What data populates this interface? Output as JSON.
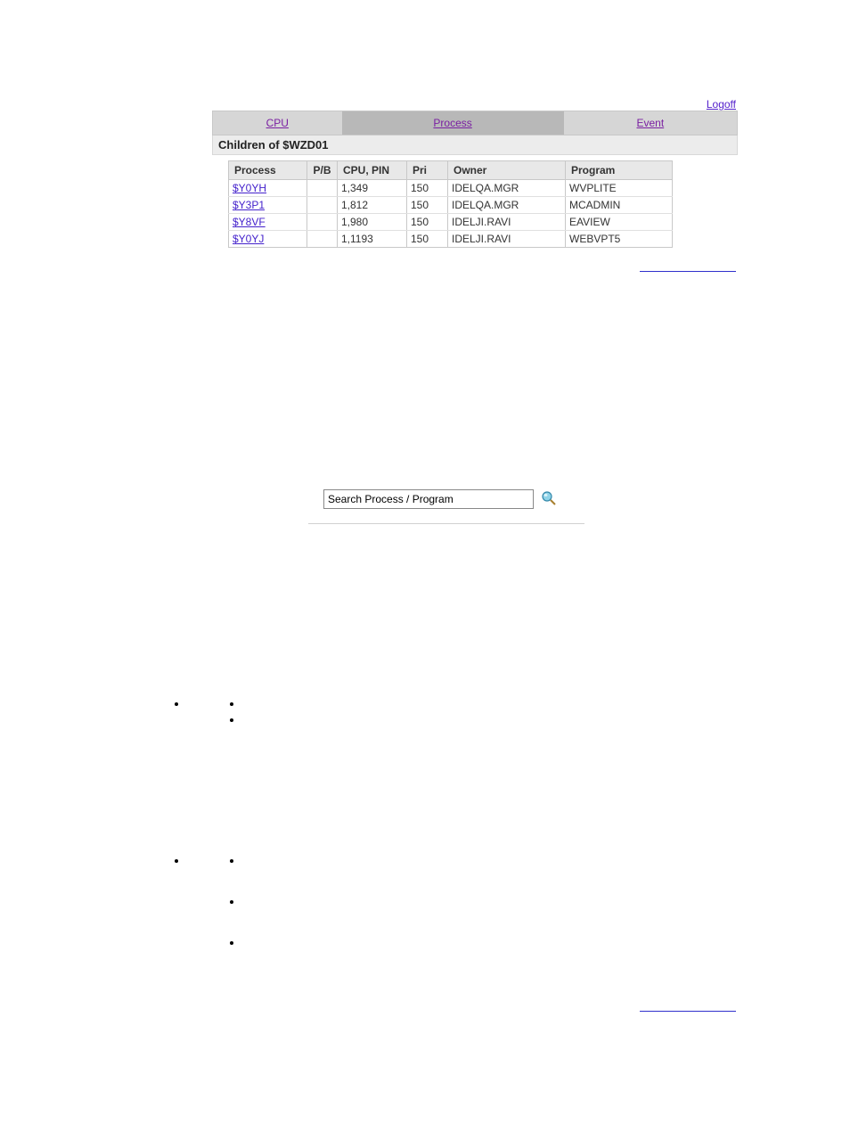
{
  "header": {
    "logoff_label": "Logoff"
  },
  "tabs": {
    "cpu": "CPU",
    "process": "Process",
    "event": "Event"
  },
  "subtitle": "Children of $WZD01",
  "table": {
    "columns": {
      "process": "Process",
      "pb": "P/B",
      "cpupin": "CPU, PIN",
      "pri": "Pri",
      "owner": "Owner",
      "program": "Program"
    },
    "rows": [
      {
        "process": "$Y0YH",
        "pb": "",
        "cpupin": "1,349",
        "pri": "150",
        "owner": "IDELQA.MGR",
        "program": "WVPLITE"
      },
      {
        "process": "$Y3P1",
        "pb": "",
        "cpupin": "1,812",
        "pri": "150",
        "owner": "IDELQA.MGR",
        "program": "MCADMIN"
      },
      {
        "process": "$Y8VF",
        "pb": "",
        "cpupin": "1,980",
        "pri": "150",
        "owner": "IDELJI.RAVI",
        "program": "EAVIEW"
      },
      {
        "process": "$Y0YJ",
        "pb": "",
        "cpupin": "1,1193",
        "pri": "150",
        "owner": "IDELJI.RAVI",
        "program": "WEBVPT5"
      }
    ]
  },
  "search": {
    "placeholder": "Search Process / Program",
    "value": "Search Process / Program"
  },
  "colors": {
    "link": "#5522cc",
    "tab_bg_light": "#d6d6d6",
    "tab_bg_dark": "#b8b8b8",
    "tab_text": "#7a1fa2",
    "table_header_bg": "#e8e8e8",
    "table_border": "#c8c8c8",
    "process_link": "#4422cc",
    "underline_blue": "#3030cc"
  }
}
